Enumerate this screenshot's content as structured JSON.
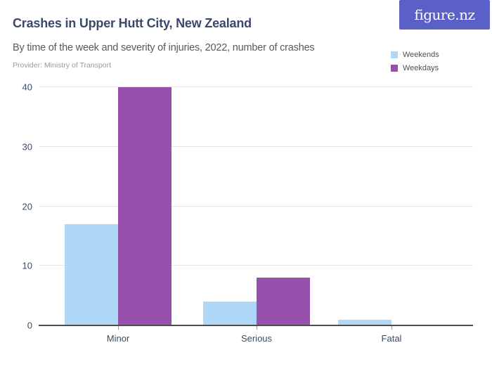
{
  "header": {
    "title": "Crashes in Upper Hutt City, New Zealand",
    "subtitle": "By time of the week and severity of injuries, 2022, number of crashes",
    "provider": "Provider: Ministry of Transport"
  },
  "logo": {
    "text": "figure.nz"
  },
  "legend": {
    "items": [
      {
        "label": "Weekends",
        "color": "#AED7F8"
      },
      {
        "label": "Weekdays",
        "color": "#9751AD"
      }
    ]
  },
  "chart_data": {
    "type": "bar",
    "title": "Crashes in Upper Hutt City, New Zealand",
    "subtitle": "By time of the week and severity of injuries, 2022, number of crashes",
    "categories": [
      "Minor",
      "Serious",
      "Fatal"
    ],
    "series": [
      {
        "name": "Weekends",
        "color": "#AED7F8",
        "values": [
          17,
          4,
          1
        ]
      },
      {
        "name": "Weekdays",
        "color": "#9751AD",
        "values": [
          40,
          8,
          0
        ]
      }
    ],
    "xlabel": "",
    "ylabel": "",
    "ylim": [
      0,
      40
    ],
    "yticks": [
      0,
      10,
      20,
      30,
      40
    ],
    "grid": true,
    "legend_position": "top-right"
  },
  "colors": {
    "accent": "#5A60C8",
    "title_text": "#3A496B",
    "subtitle_text": "#595959",
    "provider_text": "#9B9B9B",
    "axis_label": "#3C4A6B",
    "gridline": "#E4E4E4",
    "axis_line": "#4D4D4D"
  }
}
